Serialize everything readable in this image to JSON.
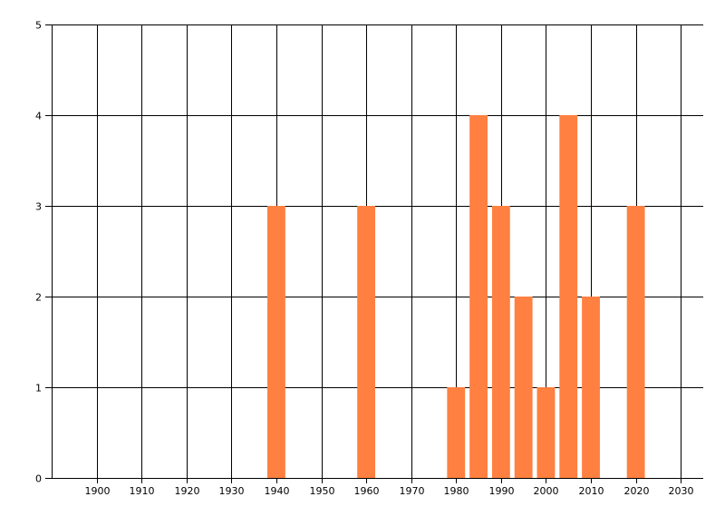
{
  "chart_data": {
    "type": "bar",
    "title": "",
    "xlabel": "",
    "ylabel": "",
    "x": [
      1940,
      1960,
      1980,
      1985,
      1990,
      1995,
      2000,
      2005,
      2010,
      2020
    ],
    "values": [
      3,
      3,
      1,
      4,
      3,
      2,
      1,
      4,
      2,
      3
    ],
    "bar_width_years": 4,
    "xlim": [
      1890,
      2035
    ],
    "ylim": [
      0,
      5
    ],
    "xticks": [
      "1900",
      "1910",
      "1920",
      "1930",
      "1940",
      "1950",
      "1960",
      "1970",
      "1980",
      "1990",
      "2000",
      "2010",
      "2020",
      "2030"
    ],
    "yticks": [
      "0",
      "1",
      "2",
      "3",
      "4",
      "5"
    ],
    "grid": true,
    "legend": "none",
    "bar_color": "#FF8040",
    "grid_color": "#000000"
  }
}
